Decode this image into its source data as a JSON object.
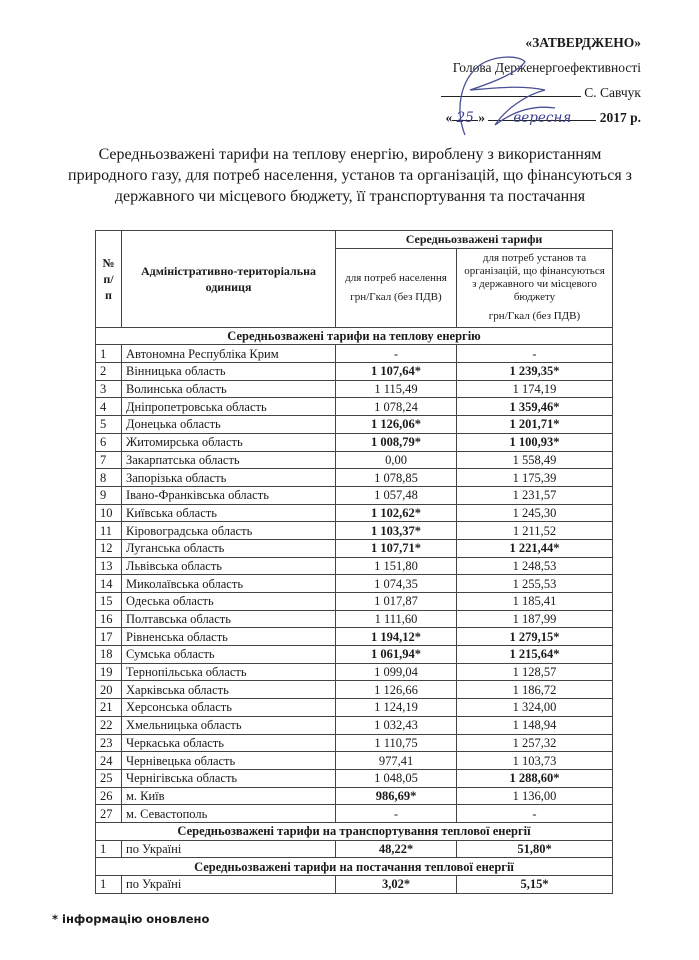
{
  "approval": {
    "approved": "«ЗАТВЕРДЖЕНО»",
    "position": "Голова Держенергоефективності",
    "signatory": "С. Савчук",
    "day": "25",
    "month": "вересня",
    "year": "2017 р."
  },
  "title": "Середньозважені тарифи на теплову енергію, вироблену з використанням природного газу, для потреб населення, установ та організацій, що фінансуються з державного чи місцевого бюджету, її транспортування та постачання",
  "table": {
    "headers": {
      "num": "№ п/п",
      "unit": "Адміністративно-територіальна одиниця",
      "group": "Середньозважені тарифи",
      "col1": "для потреб населення",
      "col1_unit": "грн/Гкал (без ПДВ)",
      "col2": "для потреб установ та організацій, що фінансуються з державного чи місцевого бюджету",
      "col2_unit": "грн/Гкал (без ПДВ)"
    },
    "sections": [
      {
        "title": "Середньозважені тарифи на теплову енергію",
        "rows": [
          {
            "n": "1",
            "name": "Автономна Республіка Крим",
            "v1": "-",
            "v2": "-"
          },
          {
            "n": "2",
            "name": "Вінницька область",
            "v1": "1 107,64*",
            "v2": "1 239,35*"
          },
          {
            "n": "3",
            "name": "Волинська область",
            "v1": "1 115,49",
            "v2": "1 174,19"
          },
          {
            "n": "4",
            "name": "Дніпропетровська область",
            "v1": "1 078,24",
            "v2": "1 359,46*"
          },
          {
            "n": "5",
            "name": "Донецька область",
            "v1": "1 126,06*",
            "v2": "1 201,71*"
          },
          {
            "n": "6",
            "name": "Житомирська область",
            "v1": "1 008,79*",
            "v2": "1 100,93*"
          },
          {
            "n": "7",
            "name": "Закарпатська область",
            "v1": "0,00",
            "v2": "1 558,49"
          },
          {
            "n": "8",
            "name": "Запорізька область",
            "v1": "1 078,85",
            "v2": "1 175,39"
          },
          {
            "n": "9",
            "name": "Івано-Франківська область",
            "v1": "1 057,48",
            "v2": "1 231,57"
          },
          {
            "n": "10",
            "name": "Київська область",
            "v1": "1 102,62*",
            "v2": "1 245,30"
          },
          {
            "n": "11",
            "name": "Кіровоградська область",
            "v1": "1 103,37*",
            "v2": "1 211,52"
          },
          {
            "n": "12",
            "name": "Луганська область",
            "v1": "1 107,71*",
            "v2": "1 221,44*"
          },
          {
            "n": "13",
            "name": "Львівська область",
            "v1": "1 151,80",
            "v2": "1 248,53"
          },
          {
            "n": "14",
            "name": "Миколаївська область",
            "v1": "1 074,35",
            "v2": "1 255,53"
          },
          {
            "n": "15",
            "name": "Одеська область",
            "v1": "1 017,87",
            "v2": "1 185,41"
          },
          {
            "n": "16",
            "name": "Полтавська область",
            "v1": "1 111,60",
            "v2": "1 187,99"
          },
          {
            "n": "17",
            "name": "Рівненська область",
            "v1": "1 194,12*",
            "v2": "1 279,15*"
          },
          {
            "n": "18",
            "name": "Сумська область",
            "v1": "1 061,94*",
            "v2": "1 215,64*"
          },
          {
            "n": "19",
            "name": "Тернопільська область",
            "v1": "1 099,04",
            "v2": "1 128,57"
          },
          {
            "n": "20",
            "name": "Харківська область",
            "v1": "1 126,66",
            "v2": "1 186,72"
          },
          {
            "n": "21",
            "name": "Херсонська область",
            "v1": "1 124,19",
            "v2": "1 324,00"
          },
          {
            "n": "22",
            "name": "Хмельницька область",
            "v1": "1 032,43",
            "v2": "1 148,94"
          },
          {
            "n": "23",
            "name": "Черкаська область",
            "v1": "1 110,75",
            "v2": "1 257,32"
          },
          {
            "n": "24",
            "name": "Чернівецька область",
            "v1": "977,41",
            "v2": "1 103,73"
          },
          {
            "n": "25",
            "name": "Чернігівська область",
            "v1": "1 048,05",
            "v2": "1 288,60*"
          },
          {
            "n": "26",
            "name": "м. Київ",
            "v1": "986,69*",
            "v2": "1 136,00"
          },
          {
            "n": "27",
            "name": "м. Севастополь",
            "v1": "-",
            "v2": "-"
          }
        ]
      },
      {
        "title": "Середньозважені тарифи на транспортування теплової енергії",
        "rows": [
          {
            "n": "1",
            "name": "по Україні",
            "v1": "48,22*",
            "v2": "51,80*"
          }
        ]
      },
      {
        "title": "Середньозважені тарифи на постачання теплової енергії",
        "rows": [
          {
            "n": "1",
            "name": "по Україні",
            "v1": "3,02*",
            "v2": "5,15*"
          }
        ]
      }
    ]
  },
  "footnote": "* інформацію оновлено"
}
